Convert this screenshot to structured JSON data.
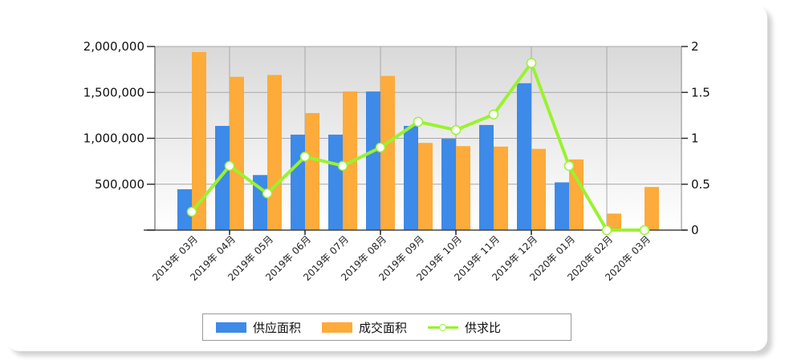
{
  "chart_data": {
    "type": "bar",
    "title": "",
    "xlabel": "",
    "ylabel": "",
    "y2label": "",
    "categories": [
      "2019年 03月",
      "2019年 04月",
      "2019年 05月",
      "2019年 06月",
      "2019年 07月",
      "2019年 08月",
      "2019年 09月",
      "2019年 10月",
      "2019年 11月",
      "2019年 12月",
      "2020年 01月",
      "2020年 02月",
      "2020年 03月"
    ],
    "series": [
      {
        "name": "供应面积",
        "type": "bar",
        "axis": "left",
        "color": "#3d8ae8",
        "values": [
          445000,
          1135000,
          600000,
          1040000,
          1040000,
          1510000,
          1135000,
          995000,
          1145000,
          1600000,
          520000,
          0,
          0
        ]
      },
      {
        "name": "成交面积",
        "type": "bar",
        "axis": "left",
        "color": "#fdab3a",
        "values": [
          1940000,
          1670000,
          1690000,
          1275000,
          1510000,
          1680000,
          950000,
          915000,
          910000,
          885000,
          770000,
          180000,
          470000
        ]
      },
      {
        "name": "供求比",
        "type": "line",
        "axis": "right",
        "color": "#9af22f",
        "values": [
          0.2,
          0.7,
          0.4,
          0.8,
          0.7,
          0.9,
          1.18,
          1.09,
          1.26,
          1.82,
          0.7,
          0,
          0
        ]
      }
    ],
    "ylim": [
      0,
      2000000
    ],
    "y2lim": [
      0,
      2
    ],
    "yticks": [
      "500,000",
      "1,000,000",
      "1,500,000",
      "2,000,000"
    ],
    "y2ticks": [
      "0",
      "0.5",
      "1",
      "1.5",
      "2"
    ],
    "grid": true,
    "legend_position": "bottom"
  },
  "legend": {
    "items": [
      {
        "label": "供应面积",
        "color": "#3d8ae8"
      },
      {
        "label": "成交面积",
        "color": "#fdab3a"
      },
      {
        "label": "供求比",
        "color": "#9af22f"
      }
    ]
  }
}
